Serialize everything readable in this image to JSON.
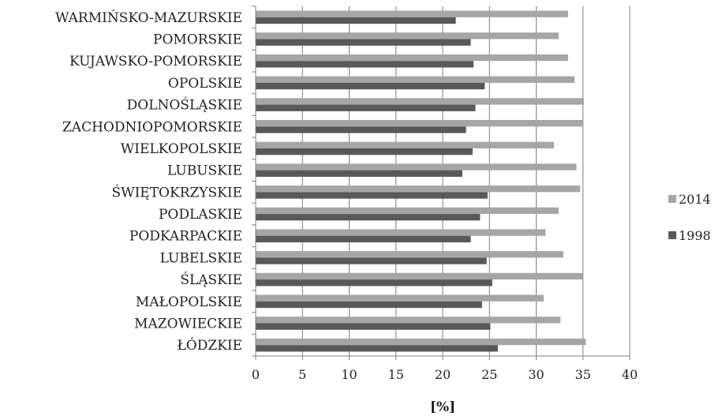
{
  "chart_data": {
    "type": "bar",
    "orientation": "horizontal",
    "categories": [
      "WARMIŃSKO-MAZURSKIE",
      "POMORSKIE",
      "KUJAWSKO-POMORSKIE",
      "OPOLSKIE",
      "DOLNOŚLĄSKIE",
      "ZACHODNIOPOMORSKIE",
      "WIELKOPOLSKIE",
      "LUBUSKIE",
      "ŚWIĘTOKRZYSKIE",
      "PODLASKIE",
      "PODKARPACKIE",
      "LUBELSKIE",
      "ŚLĄSKIE",
      "MAŁOPOLSKIE",
      "MAZOWIECKIE",
      "ŁÓDZKIE"
    ],
    "series": [
      {
        "name": "2014",
        "color": "#a6a6a6",
        "values": [
          33.4,
          32.4,
          33.4,
          34.1,
          35.1,
          35.0,
          31.9,
          34.3,
          34.7,
          32.4,
          31.0,
          32.9,
          35.0,
          30.8,
          32.6,
          35.3
        ]
      },
      {
        "name": "1998",
        "color": "#595959",
        "values": [
          21.4,
          23.0,
          23.3,
          24.5,
          23.5,
          22.5,
          23.2,
          22.1,
          24.8,
          24.0,
          23.0,
          24.7,
          25.3,
          24.2,
          25.1,
          25.9
        ]
      }
    ],
    "xlabel": "[%]",
    "ylabel": "",
    "xlim": [
      0,
      40
    ],
    "xticks": [
      "0",
      "5",
      "10",
      "15",
      "20",
      "25",
      "30",
      "35",
      "40"
    ],
    "grid": "vertical",
    "legend_position": "right"
  }
}
